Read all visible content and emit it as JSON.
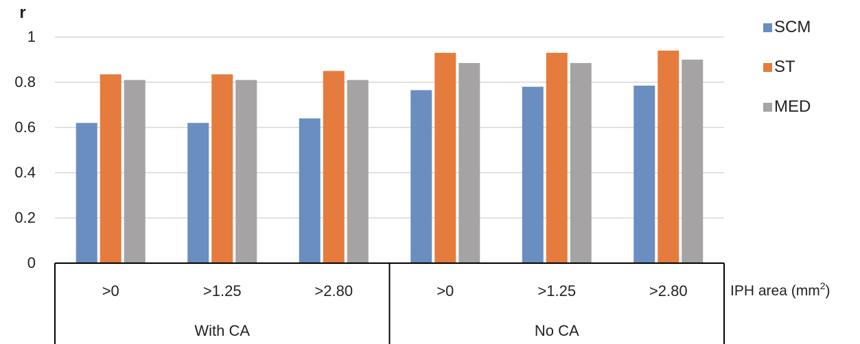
{
  "chart_data": {
    "type": "bar",
    "ylabel": "r",
    "xlabel": "IPH area (mm",
    "xlabel_sup": "2",
    "xlabel_suffix": ")",
    "ylim": [
      0,
      1
    ],
    "yticks": [
      "0",
      "0.2",
      "0.4",
      "0.6",
      "0.8",
      "1"
    ],
    "groups": [
      {
        "label": "With CA",
        "categories": [
          ">0",
          ">1.25",
          ">2.80"
        ]
      },
      {
        "label": "No CA",
        "categories": [
          ">0",
          ">1.25",
          ">2.80"
        ]
      }
    ],
    "categories": [
      ">0",
      ">1.25",
      ">2.80",
      ">0",
      ">1.25",
      ">2.80"
    ],
    "series": [
      {
        "name": "SCM",
        "values": [
          0.62,
          0.62,
          0.64,
          0.765,
          0.78,
          0.785
        ]
      },
      {
        "name": "ST",
        "values": [
          0.835,
          0.835,
          0.85,
          0.93,
          0.93,
          0.94
        ]
      },
      {
        "name": "MED",
        "values": [
          0.81,
          0.81,
          0.81,
          0.885,
          0.885,
          0.9
        ]
      }
    ],
    "grid": true,
    "legend_position": "top-right"
  },
  "colors": {
    "SCM": "#6a8ebf",
    "ST": "#e57c3d",
    "MED": "#a5a3a3",
    "grid": "#d9d9d9",
    "axis": "#000000"
  }
}
